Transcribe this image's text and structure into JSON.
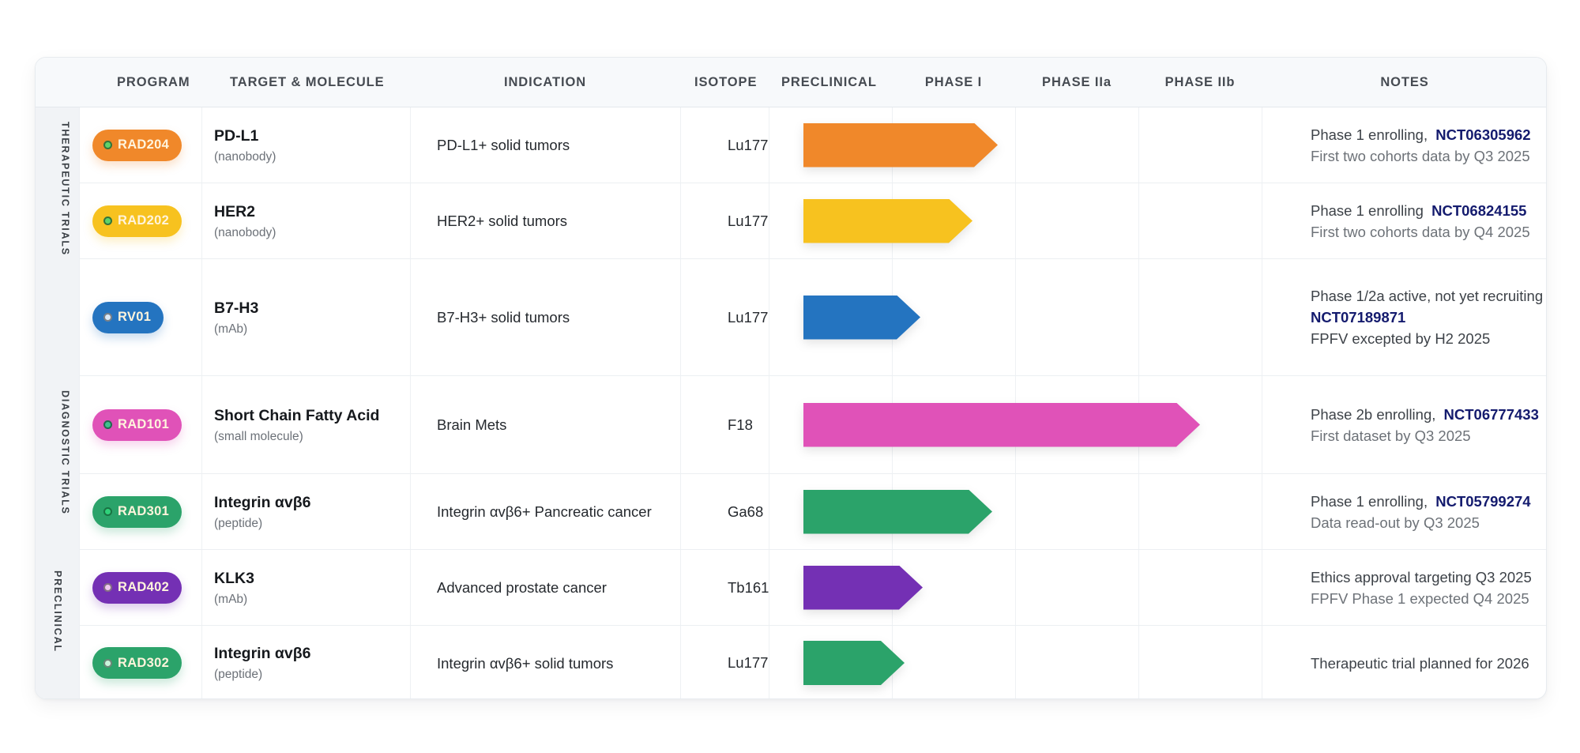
{
  "header": {
    "program": "PROGRAM",
    "target": "TARGET & MOLECULE",
    "indication": "INDICATION",
    "isotope": "ISOTOPE",
    "phases": [
      "PRECLINICAL",
      "PHASE I",
      "PHASE IIa",
      "PHASE IIb"
    ],
    "notes": "NOTES"
  },
  "groups": [
    {
      "label": "THERAPEUTIC TRIALS",
      "rows": [
        0,
        1,
        2
      ]
    },
    {
      "label": "DIAGNOSTIC TRIALS",
      "rows": [
        3,
        4
      ]
    },
    {
      "label": "PRECLINICAL",
      "rows": [
        5,
        6
      ]
    }
  ],
  "colors": {
    "orange": "#f0882a",
    "yellow": "#f7c21f",
    "blue": "#2474c0",
    "pink": "#e052b8",
    "green": "#2ba36a",
    "purple": "#7430b4",
    "nct_link": "#141b6e"
  },
  "rows": [
    {
      "program": "RAD204",
      "color": "#f0882a",
      "dot": "#5fd36a",
      "target": "PD-L1",
      "molecule": "(nanobody)",
      "indication": "PD-L1+ solid tumors",
      "isotope": "Lu177",
      "stage_end": 1.58,
      "notes": {
        "line1": "Phase 1 enrolling,",
        "nct": "NCT06305962",
        "line2": "First two cohorts data by Q3 2025"
      }
    },
    {
      "program": "RAD202",
      "color": "#f7c21f",
      "dot": "#5fd36a",
      "target": "HER2",
      "molecule": "(nanobody)",
      "indication": "HER2+ solid tumors",
      "isotope": "Lu177",
      "stage_end": 1.37,
      "notes": {
        "line1": "Phase 1 enrolling",
        "nct": "NCT06824155",
        "line2": "First two cohorts data by Q4 2025"
      }
    },
    {
      "program": "RV01",
      "color": "#2474c0",
      "dot": "#dbe9f7",
      "target": "B7-H3",
      "molecule": "(mAb)",
      "indication": "B7-H3+ solid tumors",
      "isotope": "Lu177",
      "stage_end": 0.95,
      "notes": {
        "line1": "Phase 1/2a active, not yet recruiting",
        "nct": "NCT07189871",
        "line2": "FPFV excepted by H2 2025"
      }
    },
    {
      "program": "RAD101",
      "color": "#e052b8",
      "dot": "#3fc08e",
      "target": "Short Chain Fatty Acid",
      "molecule": "(small molecule)",
      "indication": "Brain Mets",
      "isotope": "F18",
      "stage_end": 3.22,
      "notes": {
        "line1": "Phase 2b enrolling,",
        "nct": "NCT06777433",
        "line2": "First dataset by Q3 2025"
      }
    },
    {
      "program": "RAD301",
      "color": "#2ba36a",
      "dot": "#2fd27a",
      "target": "Integrin αvβ6",
      "molecule": "(peptide)",
      "indication": "Integrin αvβ6+ Pancreatic cancer",
      "isotope": "Ga68",
      "stage_end": 1.53,
      "notes": {
        "line1": "Phase 1 enrolling,",
        "nct": "NCT05799274",
        "line2": "Data read-out by Q3 2025"
      }
    },
    {
      "program": "RAD402",
      "color": "#7430b4",
      "dot": "#f0c8f0",
      "target": "KLK3",
      "molecule": "(mAb)",
      "indication": "Advanced prostate cancer",
      "isotope": "Tb161",
      "stage_end": 0.97,
      "notes": {
        "line1": "Ethics approval targeting Q3 2025",
        "nct": "",
        "line2": "FPFV Phase 1 expected Q4 2025"
      }
    },
    {
      "program": "RAD302",
      "color": "#2ba36a",
      "dot": "#c9f5dc",
      "target": "Integrin αvβ6",
      "molecule": "(peptide)",
      "indication": "Integrin αvβ6+ solid tumors",
      "isotope": "Lu177",
      "stage_end": 0.82,
      "notes": {
        "line1": "Therapeutic trial planned for 2026",
        "nct": "",
        "line2": ""
      }
    }
  ]
}
